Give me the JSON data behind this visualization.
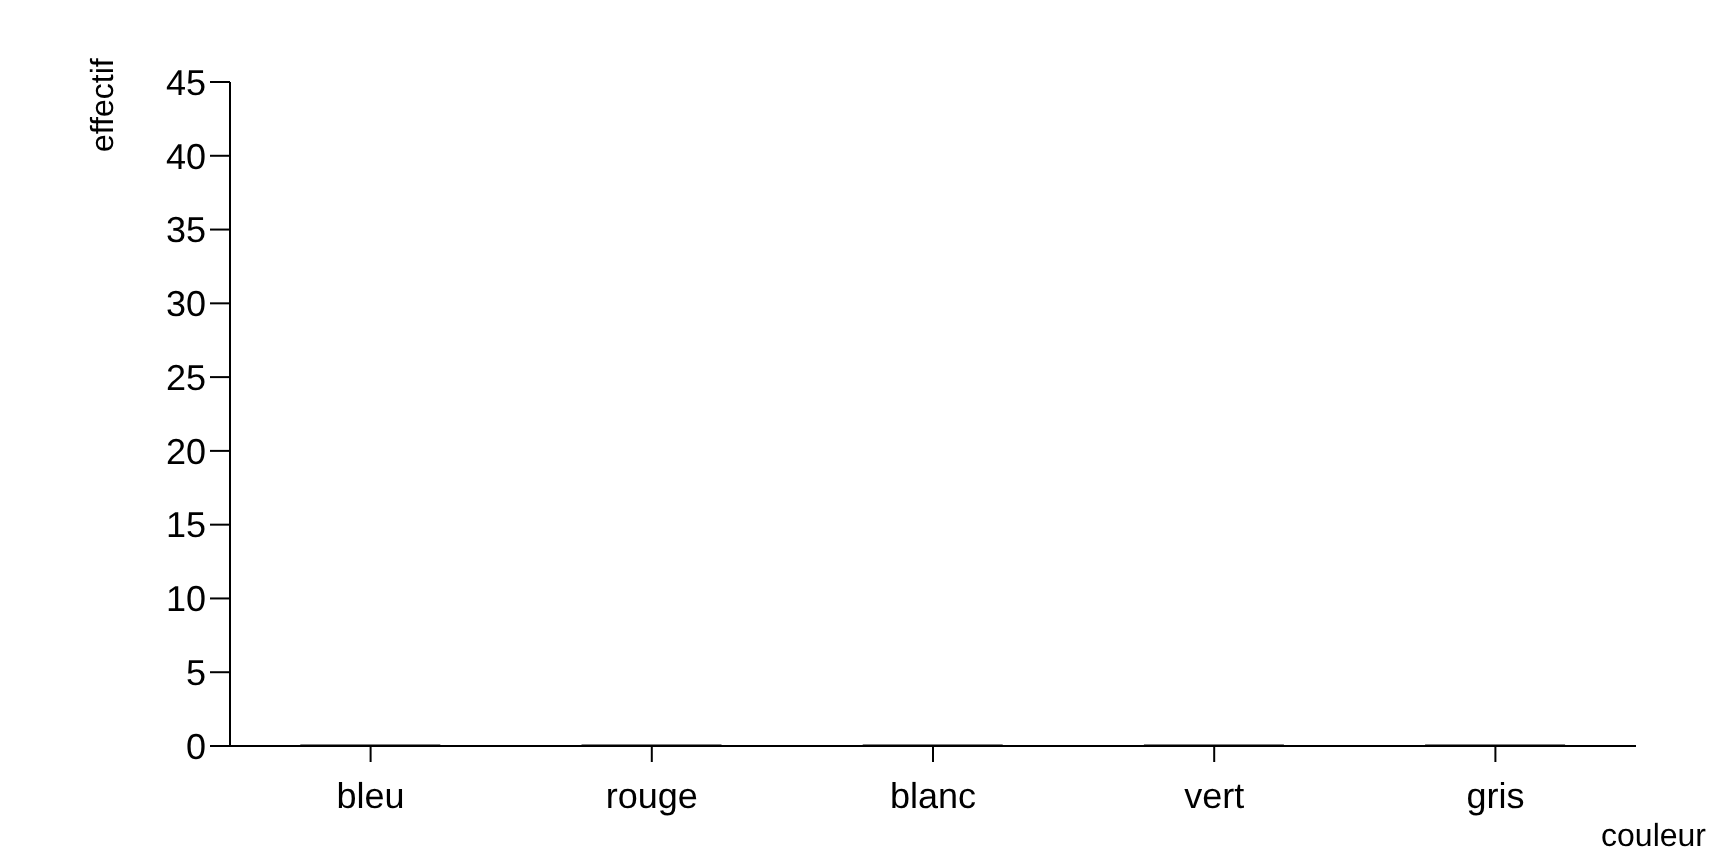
{
  "chart_data": {
    "type": "bar",
    "xlabel": "couleur",
    "ylabel": "effectif",
    "categories": [
      "bleu",
      "rouge",
      "blanc",
      "vert",
      "gris"
    ],
    "values": [
      0,
      0,
      0,
      0,
      0
    ],
    "color": "#808080",
    "ylim": [
      0,
      45
    ],
    "yticks": [
      0,
      5,
      10,
      15,
      20,
      25,
      30,
      35,
      40,
      45
    ],
    "grid": false
  }
}
